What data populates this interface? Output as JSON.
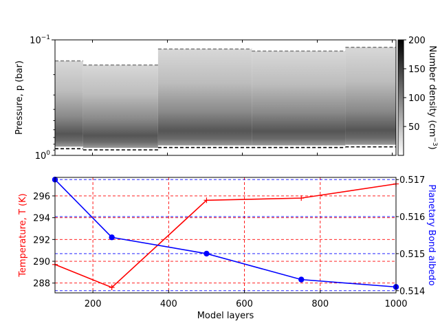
{
  "chart_data": [
    {
      "type": "heatmap",
      "ylabel": "Pressure, $p$ (bar)",
      "ylabel_display": "Pressure, p (bar)",
      "y_scale": "log",
      "y_inverted": true,
      "ylim": [
        1,
        0.1
      ],
      "yticks": [
        {
          "value": 0.1,
          "base": "10",
          "exp": "−1"
        },
        {
          "value": 1,
          "base": "10",
          "exp": "0"
        }
      ],
      "xlim": [
        100,
        1010
      ],
      "x_ticklabels_shown": false,
      "xticks": [
        200,
        400,
        600,
        800,
        1000
      ],
      "colorbar": {
        "label": "Number density (cm",
        "label_sup": "−3",
        "label_end": ")",
        "range": [
          0,
          200
        ],
        "ticks": [
          50,
          100,
          150,
          200
        ],
        "colormap": "white-to-black"
      },
      "columns": [
        {
          "x_start": 100,
          "x_end": 175,
          "p_top": 0.152,
          "p_bottom": 0.84
        },
        {
          "x_start": 175,
          "x_end": 375,
          "p_top": 0.165,
          "p_bottom": 0.86
        },
        {
          "x_start": 375,
          "x_end": 625,
          "p_top": 0.12,
          "p_bottom": 0.82
        },
        {
          "x_start": 625,
          "x_end": 875,
          "p_top": 0.125,
          "p_bottom": 0.82
        },
        {
          "x_start": 875,
          "x_end": 1010,
          "p_top": 0.116,
          "p_bottom": 0.81
        }
      ]
    },
    {
      "type": "line",
      "xlabel": "Model layers",
      "xlim": [
        100,
        1000
      ],
      "xticks": [
        200,
        400,
        600,
        800,
        1000
      ],
      "series": [
        {
          "name": "Temperature, $T$ (K)",
          "name_display": "Temperature, T (K)",
          "axis": "left",
          "color": "#ff0000",
          "marker": "plus",
          "x": [
            100,
            250,
            500,
            750,
            1000
          ],
          "values": [
            289.7,
            287.6,
            295.6,
            295.8,
            297.1
          ],
          "ylim": [
            287.1,
            297.7
          ],
          "yticks": [
            288,
            290,
            292,
            294,
            296
          ]
        },
        {
          "name": "Planetary Bond albedo",
          "axis": "right",
          "color": "#0000ff",
          "marker": "circle",
          "x": [
            100,
            250,
            500,
            750,
            1000
          ],
          "values": [
            0.517,
            0.51544,
            0.515,
            0.5143,
            0.5141
          ],
          "ylim": [
            0.51394,
            0.51706
          ],
          "yticks": [
            0.514,
            0.515,
            0.516,
            0.517
          ]
        }
      ],
      "grid": true
    }
  ]
}
